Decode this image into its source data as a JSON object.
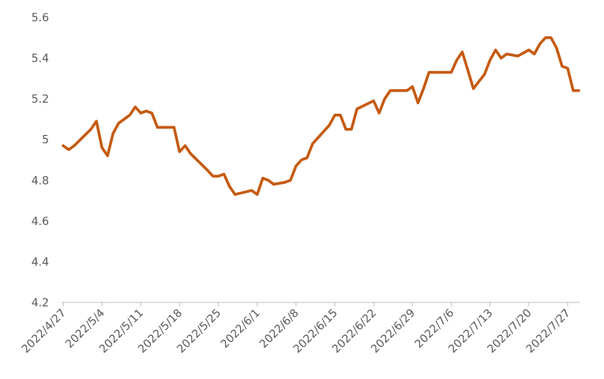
{
  "chart_data": {
    "type": "line",
    "title": "",
    "xlabel": "",
    "ylabel": "",
    "ylim": [
      4.2,
      5.6
    ],
    "yticks": [
      "4.2",
      "4.4",
      "4.6",
      "4.8",
      "5",
      "5.2",
      "5.4",
      "5.6"
    ],
    "xticks": [
      "2022/4/27",
      "2022/5/4",
      "2022/5/11",
      "2022/5/18",
      "2022/5/25",
      "2022/6/1",
      "2022/6/8",
      "2022/6/15",
      "2022/6/22",
      "2022/6/29",
      "2022/7/6",
      "2022/7/13",
      "2022/7/20",
      "2022/7/27"
    ],
    "grid": false,
    "legend": "none",
    "line_color": "#c55a11",
    "series": [
      {
        "points": [
          [
            "2022/4/27",
            4.97
          ],
          [
            "2022/4/28",
            4.95
          ],
          [
            "2022/4/29",
            4.97
          ],
          [
            "2022/5/2",
            5.05
          ],
          [
            "2022/5/3",
            5.09
          ],
          [
            "2022/5/4",
            4.96
          ],
          [
            "2022/5/5",
            4.92
          ],
          [
            "2022/5/6",
            5.03
          ],
          [
            "2022/5/7",
            5.08
          ],
          [
            "2022/5/9",
            5.12
          ],
          [
            "2022/5/10",
            5.16
          ],
          [
            "2022/5/11",
            5.13
          ],
          [
            "2022/5/12",
            5.14
          ],
          [
            "2022/5/13",
            5.13
          ],
          [
            "2022/5/14",
            5.06
          ],
          [
            "2022/5/16",
            5.06
          ],
          [
            "2022/5/17",
            5.06
          ],
          [
            "2022/5/18",
            4.94
          ],
          [
            "2022/5/19",
            4.97
          ],
          [
            "2022/5/20",
            4.93
          ],
          [
            "2022/5/23",
            4.85
          ],
          [
            "2022/5/24",
            4.82
          ],
          [
            "2022/5/25",
            4.82
          ],
          [
            "2022/5/26",
            4.83
          ],
          [
            "2022/5/27",
            4.77
          ],
          [
            "2022/5/28",
            4.73
          ],
          [
            "2022/5/31",
            4.75
          ],
          [
            "2022/6/1",
            4.73
          ],
          [
            "2022/6/2",
            4.81
          ],
          [
            "2022/6/3",
            4.8
          ],
          [
            "2022/6/4",
            4.78
          ],
          [
            "2022/6/6",
            4.79
          ],
          [
            "2022/6/7",
            4.8
          ],
          [
            "2022/6/8",
            4.87
          ],
          [
            "2022/6/9",
            4.9
          ],
          [
            "2022/6/10",
            4.91
          ],
          [
            "2022/6/11",
            4.98
          ],
          [
            "2022/6/14",
            5.07
          ],
          [
            "2022/6/15",
            5.12
          ],
          [
            "2022/6/16",
            5.12
          ],
          [
            "2022/6/17",
            5.05
          ],
          [
            "2022/6/18",
            5.05
          ],
          [
            "2022/6/19",
            5.15
          ],
          [
            "2022/6/22",
            5.19
          ],
          [
            "2022/6/23",
            5.13
          ],
          [
            "2022/6/24",
            5.2
          ],
          [
            "2022/6/25",
            5.24
          ],
          [
            "2022/6/26",
            5.24
          ],
          [
            "2022/6/28",
            5.24
          ],
          [
            "2022/6/29",
            5.26
          ],
          [
            "2022/6/30",
            5.18
          ],
          [
            "2022/7/1",
            5.25
          ],
          [
            "2022/7/2",
            5.33
          ],
          [
            "2022/7/5",
            5.33
          ],
          [
            "2022/7/6",
            5.33
          ],
          [
            "2022/7/7",
            5.39
          ],
          [
            "2022/7/8",
            5.43
          ],
          [
            "2022/7/10",
            5.25
          ],
          [
            "2022/7/12",
            5.32
          ],
          [
            "2022/7/13",
            5.39
          ],
          [
            "2022/7/14",
            5.44
          ],
          [
            "2022/7/15",
            5.4
          ],
          [
            "2022/7/16",
            5.42
          ],
          [
            "2022/7/18",
            5.41
          ],
          [
            "2022/7/20",
            5.44
          ],
          [
            "2022/7/21",
            5.42
          ],
          [
            "2022/7/22",
            5.47
          ],
          [
            "2022/7/23",
            5.5
          ],
          [
            "2022/7/24",
            5.5
          ],
          [
            "2022/7/25",
            5.45
          ],
          [
            "2022/7/26",
            5.36
          ],
          [
            "2022/7/27",
            5.35
          ],
          [
            "2022/7/28",
            5.24
          ],
          [
            "2022/7/29",
            5.24
          ]
        ]
      }
    ]
  }
}
